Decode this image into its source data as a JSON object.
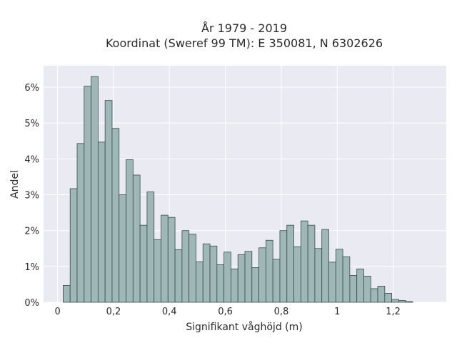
{
  "chart_data": {
    "type": "bar",
    "title": "År 1979 - 2019",
    "subtitle": "Koordinat (Sweref 99 TM): E 350081, N 6302626",
    "xlabel": "Signifikant våghöjd (m)",
    "ylabel": "Andel",
    "xlim": [
      -0.05,
      1.39
    ],
    "ylim": [
      0,
      6.6
    ],
    "x_ticks": [
      0,
      0.2,
      0.4,
      0.6,
      0.8,
      1.0,
      1.2
    ],
    "x_tick_labels": [
      "0",
      "0,2",
      "0,4",
      "0,6",
      "0,8",
      "1",
      "1,2"
    ],
    "y_ticks": [
      0,
      1,
      2,
      3,
      4,
      5,
      6
    ],
    "y_tick_labels": [
      "0%",
      "1%",
      "2%",
      "3%",
      "4%",
      "5%",
      "6%"
    ],
    "bin_start": 0.02,
    "bin_width": 0.025,
    "values": [
      0.47,
      3.17,
      4.43,
      6.03,
      6.3,
      4.47,
      5.63,
      4.85,
      3.0,
      3.98,
      3.55,
      2.15,
      3.08,
      1.75,
      2.43,
      2.37,
      1.47,
      2.0,
      1.9,
      1.13,
      1.63,
      1.57,
      1.05,
      1.4,
      0.93,
      1.33,
      1.42,
      0.97,
      1.52,
      1.73,
      1.2,
      2.0,
      2.15,
      1.55,
      2.27,
      2.15,
      1.5,
      2.03,
      1.12,
      1.48,
      1.27,
      0.75,
      0.93,
      0.73,
      0.38,
      0.45,
      0.25,
      0.08,
      0.05,
      0.02
    ],
    "grid": true,
    "legend": "none",
    "colors": {
      "bar_fill": "#9fb7b7",
      "bar_edge": "#3a4a4a",
      "plot_bg": "#eaeaf2",
      "grid": "#ffffff"
    }
  }
}
